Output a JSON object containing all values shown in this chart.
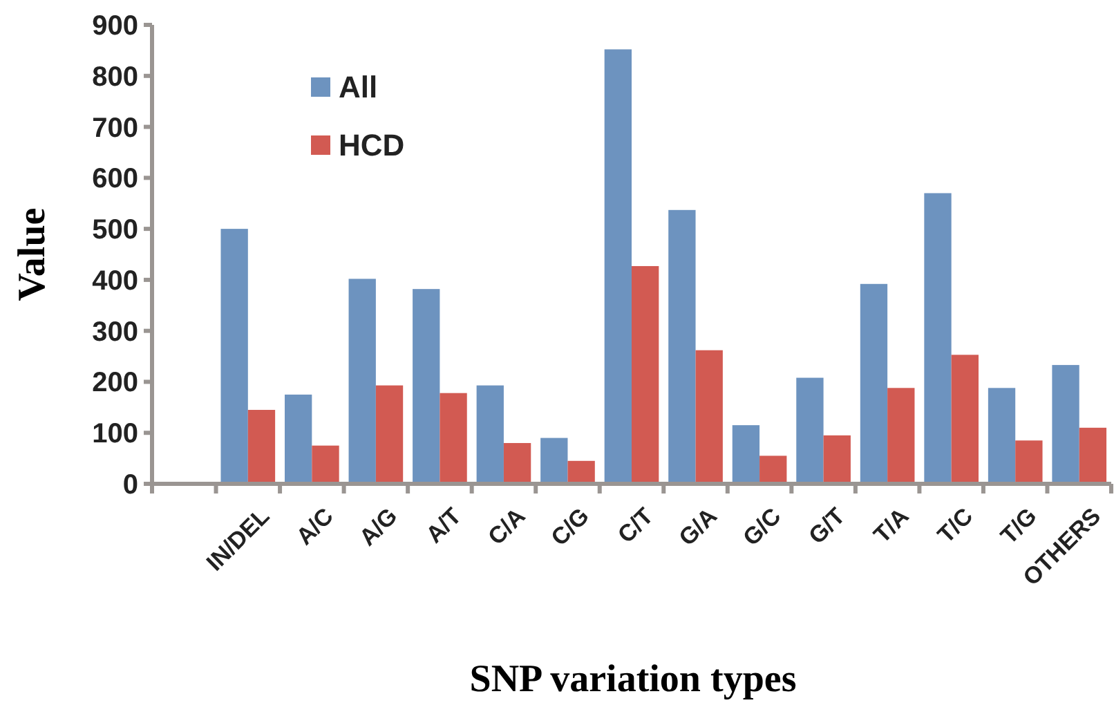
{
  "chart_data": {
    "type": "bar",
    "xlabel": "SNP variation types",
    "ylabel": "Value",
    "categories": [
      null,
      "IN/DEL",
      "A/C",
      "A/G",
      "A/T",
      "C/A",
      "C/G",
      "C/T",
      "G/A",
      "G/C",
      "G/T",
      "T/A",
      "T/C",
      "T/G",
      "OTHERS"
    ],
    "series": [
      {
        "name": "All",
        "color": "#6d93bf",
        "values": [
          null,
          500,
          175,
          402,
          382,
          193,
          90,
          852,
          537,
          115,
          208,
          392,
          570,
          188,
          233
        ]
      },
      {
        "name": "HCD",
        "color": "#d25a52",
        "values": [
          null,
          145,
          75,
          193,
          178,
          80,
          45,
          427,
          262,
          55,
          95,
          188,
          253,
          85,
          110
        ]
      }
    ],
    "ylim": [
      0,
      900
    ],
    "yticks": [
      0,
      100,
      200,
      300,
      400,
      500,
      600,
      700,
      800,
      900
    ],
    "grid": false,
    "legend": "top left"
  }
}
